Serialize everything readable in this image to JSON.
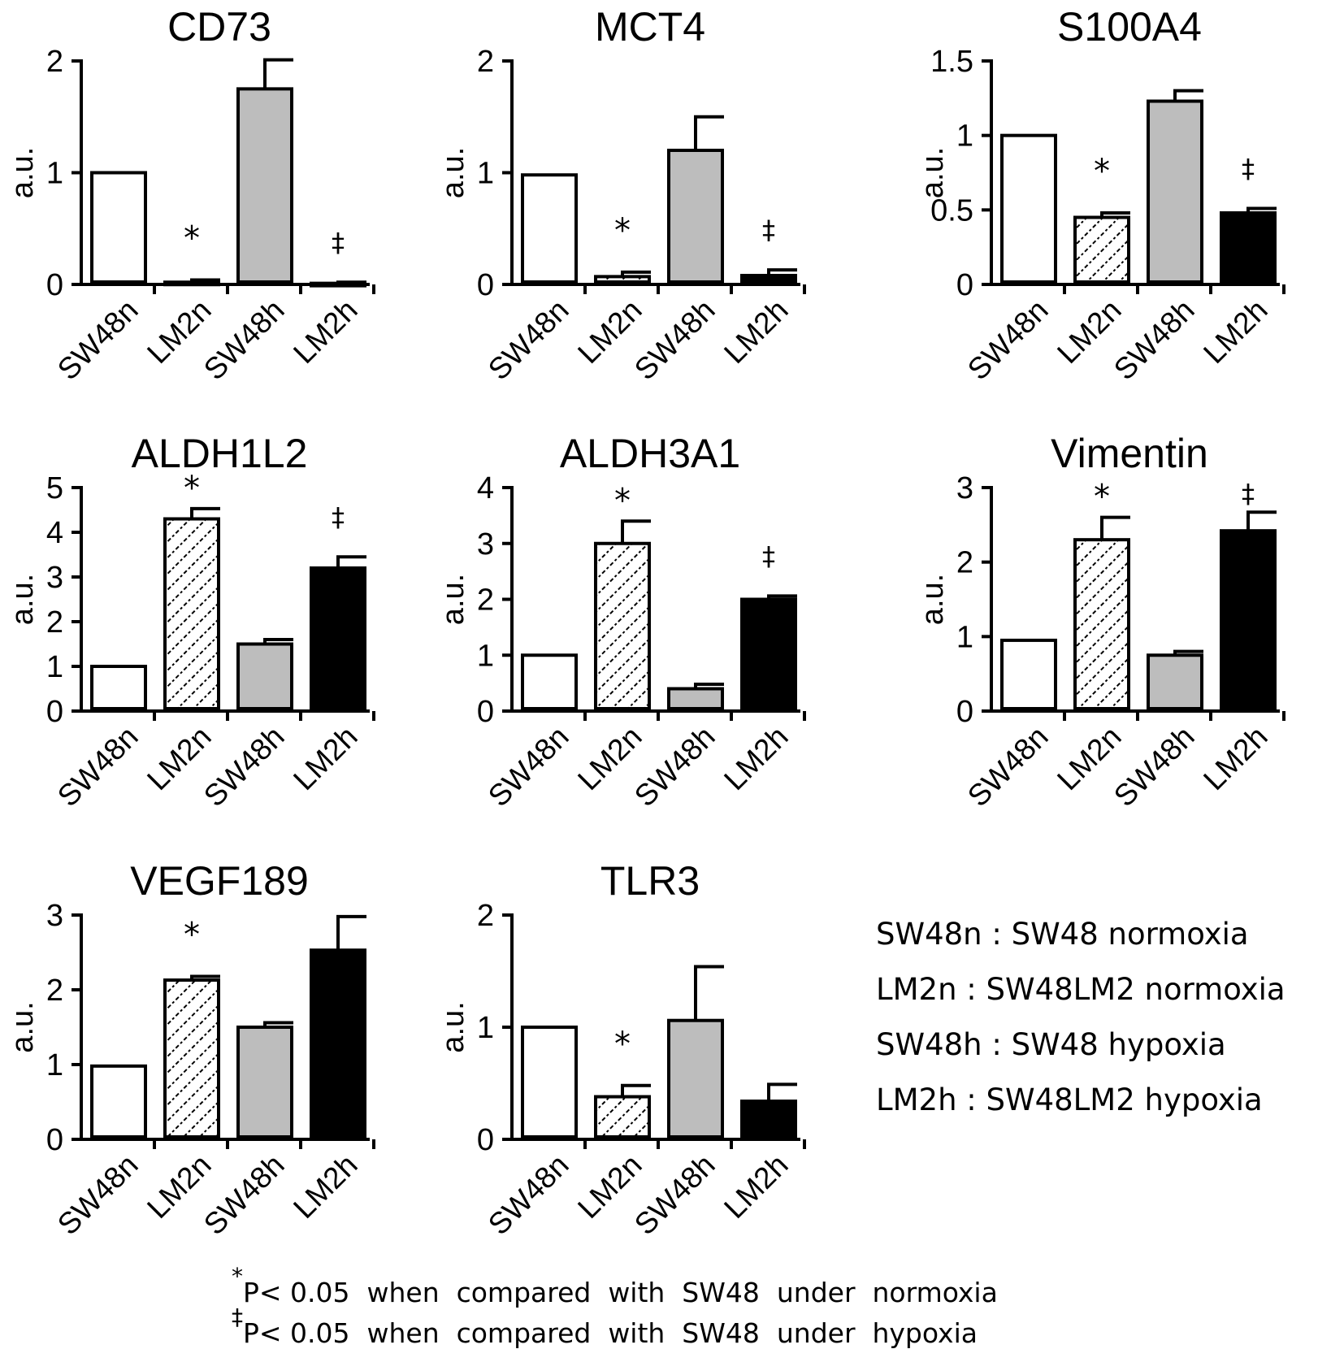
{
  "chart_data": [
    {
      "type": "bar",
      "title": "CD73",
      "ylabel": "a.u.",
      "categories": [
        "SW48n",
        "LM2n",
        "SW48h",
        "LM2h"
      ],
      "values": [
        1.0,
        0.02,
        1.75,
        0.01
      ],
      "errors": [
        0,
        0.02,
        0.26,
        0.01
      ],
      "annotations": [
        "",
        "*",
        "",
        "‡"
      ],
      "ylim": [
        0,
        2
      ],
      "yticks": [
        "0",
        "1",
        "2"
      ],
      "ytick_values": [
        0,
        1,
        2
      ]
    },
    {
      "type": "bar",
      "title": "MCT4",
      "ylabel": "a.u.",
      "categories": [
        "SW48n",
        "LM2n",
        "SW48h",
        "LM2h"
      ],
      "values": [
        0.98,
        0.07,
        1.2,
        0.08
      ],
      "errors": [
        0,
        0.04,
        0.3,
        0.05
      ],
      "annotations": [
        "",
        "*",
        "",
        "‡"
      ],
      "ylim": [
        0,
        2
      ],
      "yticks": [
        "0",
        "1",
        "2"
      ],
      "ytick_values": [
        0,
        1,
        2
      ]
    },
    {
      "type": "bar",
      "title": "S100A4",
      "ylabel": "a.u.",
      "categories": [
        "SW48n",
        "LM2n",
        "SW48h",
        "LM2h"
      ],
      "values": [
        1.0,
        0.45,
        1.23,
        0.48
      ],
      "errors": [
        0,
        0.03,
        0.07,
        0.03
      ],
      "annotations": [
        "",
        "*",
        "",
        "‡"
      ],
      "ylim": [
        0,
        1.5
      ],
      "yticks": [
        "0",
        "0.5",
        "1",
        "1.5"
      ],
      "ytick_values": [
        0,
        0.5,
        1,
        1.5
      ]
    },
    {
      "type": "bar",
      "title": "ALDH1L2",
      "ylabel": "a.u.",
      "categories": [
        "SW48n",
        "LM2n",
        "SW48h",
        "LM2h"
      ],
      "values": [
        1.0,
        4.3,
        1.5,
        3.2
      ],
      "errors": [
        0,
        0.23,
        0.1,
        0.25
      ],
      "annotations": [
        "",
        "*",
        "",
        "‡"
      ],
      "ylim": [
        0,
        5
      ],
      "yticks": [
        "0",
        "1",
        "2",
        "3",
        "4",
        "5"
      ],
      "ytick_values": [
        0,
        1,
        2,
        3,
        4,
        5
      ]
    },
    {
      "type": "bar",
      "title": "ALDH3A1",
      "ylabel": "a.u.",
      "categories": [
        "SW48n",
        "LM2n",
        "SW48h",
        "LM2h"
      ],
      "values": [
        1.0,
        3.0,
        0.4,
        2.0
      ],
      "errors": [
        0,
        0.4,
        0.08,
        0.06
      ],
      "annotations": [
        "",
        "*",
        "",
        "‡"
      ],
      "ylim": [
        0,
        4
      ],
      "yticks": [
        "0",
        "1",
        "2",
        "3",
        "4"
      ],
      "ytick_values": [
        0,
        1,
        2,
        3,
        4
      ]
    },
    {
      "type": "bar",
      "title": "Vimentin",
      "ylabel": "a.u.",
      "categories": [
        "SW48n",
        "LM2n",
        "SW48h",
        "LM2h"
      ],
      "values": [
        0.95,
        2.3,
        0.75,
        2.42
      ],
      "errors": [
        0,
        0.3,
        0.05,
        0.25
      ],
      "annotations": [
        "",
        "*",
        "",
        "‡"
      ],
      "ylim": [
        0,
        3
      ],
      "yticks": [
        "0",
        "1",
        "2",
        "3"
      ],
      "ytick_values": [
        0,
        1,
        2,
        3
      ]
    },
    {
      "type": "bar",
      "title": "VEGF189",
      "ylabel": "a.u.",
      "categories": [
        "SW48n",
        "LM2n",
        "SW48h",
        "LM2h"
      ],
      "values": [
        0.98,
        2.13,
        1.5,
        2.53
      ],
      "errors": [
        0,
        0.05,
        0.06,
        0.45
      ],
      "annotations": [
        "",
        "*",
        "",
        ""
      ],
      "ylim": [
        0,
        3
      ],
      "yticks": [
        "0",
        "1",
        "2",
        "3"
      ],
      "ytick_values": [
        0,
        1,
        2,
        3
      ]
    },
    {
      "type": "bar",
      "title": "TLR3",
      "ylabel": "a.u.",
      "categories": [
        "SW48n",
        "LM2n",
        "SW48h",
        "LM2h"
      ],
      "values": [
        1.0,
        0.38,
        1.06,
        0.34
      ],
      "errors": [
        0,
        0.1,
        0.48,
        0.15
      ],
      "annotations": [
        "",
        "*",
        "",
        ""
      ],
      "ylim": [
        0,
        2
      ],
      "yticks": [
        "0",
        "1",
        "2"
      ],
      "ytick_values": [
        0,
        1,
        2
      ]
    }
  ],
  "legend": [
    "SW48n : SW48 normoxia",
    "LM2n : SW48LM2 normoxia",
    "SW48h : SW48 hypoxia",
    "LM2h : SW48LM2 hypoxia"
  ],
  "footnotes": [
    {
      "symbol": "*",
      "text": "P< 0.05  when  compared  with  SW48  under  normoxia"
    },
    {
      "symbol": "‡",
      "text": "P< 0.05  when  compared  with  SW48  under  hypoxia"
    }
  ],
  "fills": {
    "SW48n": "#ffffff",
    "LM2n": "hatch",
    "SW48h": "#bdbdbd",
    "LM2h": "#000000"
  }
}
